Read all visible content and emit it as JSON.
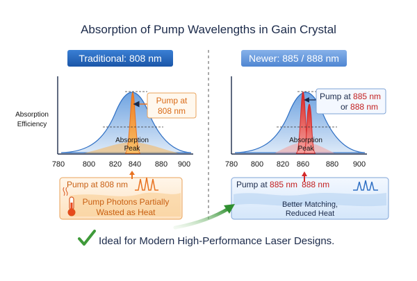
{
  "title": "Absorption of Pump Wavelengths in Gain Crystal",
  "y_axis_label": [
    "Absorption",
    "Efficiency"
  ],
  "left_panel": {
    "header": "Traditional: 808 nm",
    "callout": [
      "Pump at",
      "808 nm"
    ],
    "peak_label": [
      "Absorption",
      "Peak"
    ],
    "ticks": [
      "780",
      "800",
      "820",
      "840",
      "860",
      "880",
      "900"
    ],
    "box_pump": "Pump at 808 nm",
    "box_text": [
      "Pump Photons Partially",
      "Wasted as Heat"
    ]
  },
  "right_panel": {
    "header": "Newer: 885 / 888 nm",
    "callout": {
      "line1_prefix": "Pump at ",
      "line1_value": "885 nm",
      "line2_prefix": "or ",
      "line2_value": "888 nm"
    },
    "peak_label": [
      "Absorption",
      "Peak"
    ],
    "ticks": [
      "780",
      "800",
      "820",
      "840",
      "860",
      "880",
      "900"
    ],
    "box_pump_prefix": "Pump at ",
    "box_pump_v1": "885 nm",
    "box_pump_v2": "888 nm",
    "box_text": [
      "Better Matching,",
      "Reduced Heat"
    ]
  },
  "footer": "Ideal for Modern High-Performance Laser Designs.",
  "colors": {
    "blue": "#2e6fc4",
    "header_dark": "#1f5fb8",
    "header_light": "#5e93dc",
    "orange": "#e8711f",
    "red": "#d42a2a",
    "green": "#3f9a3a",
    "navy": "#1b2a4a"
  }
}
